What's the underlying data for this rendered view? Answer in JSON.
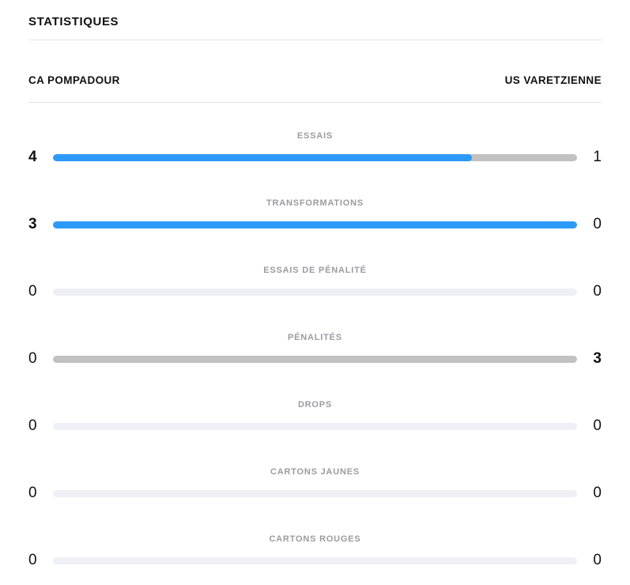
{
  "panel": {
    "title": "STATISTIQUES"
  },
  "teams": {
    "home": "CA POMPADOUR",
    "away": "US VARETZIENNE"
  },
  "colors": {
    "home_bar": "#2D9AFA",
    "away_bar": "#C1C1C1",
    "empty_bar": "#EEF0F5"
  },
  "stats": {
    "rows": [
      {
        "label": "ESSAIS",
        "home": 4,
        "away": 1
      },
      {
        "label": "TRANSFORMATIONS",
        "home": 3,
        "away": 0
      },
      {
        "label": "ESSAIS DE PÉNALITÉ",
        "home": 0,
        "away": 0
      },
      {
        "label": "PÉNALITÉS",
        "home": 0,
        "away": 3
      },
      {
        "label": "DROPS",
        "home": 0,
        "away": 0
      },
      {
        "label": "CARTONS JAUNES",
        "home": 0,
        "away": 0
      },
      {
        "label": "CARTONS ROUGES",
        "home": 0,
        "away": 0
      }
    ]
  },
  "chart_data": {
    "type": "bar",
    "title": "STATISTIQUES",
    "categories": [
      "ESSAIS",
      "TRANSFORMATIONS",
      "ESSAIS DE PÉNALITÉ",
      "PÉNALITÉS",
      "DROPS",
      "CARTONS JAUNES",
      "CARTONS ROUGES"
    ],
    "series": [
      {
        "name": "CA POMPADOUR",
        "values": [
          4,
          3,
          0,
          0,
          0,
          0,
          0
        ]
      },
      {
        "name": "US VARETZIENNE",
        "values": [
          1,
          0,
          0,
          3,
          0,
          0,
          0
        ]
      }
    ],
    "layout": "horizontal-opposed-bars, home share fills blue from left, away share gray, empty rows light gray"
  }
}
